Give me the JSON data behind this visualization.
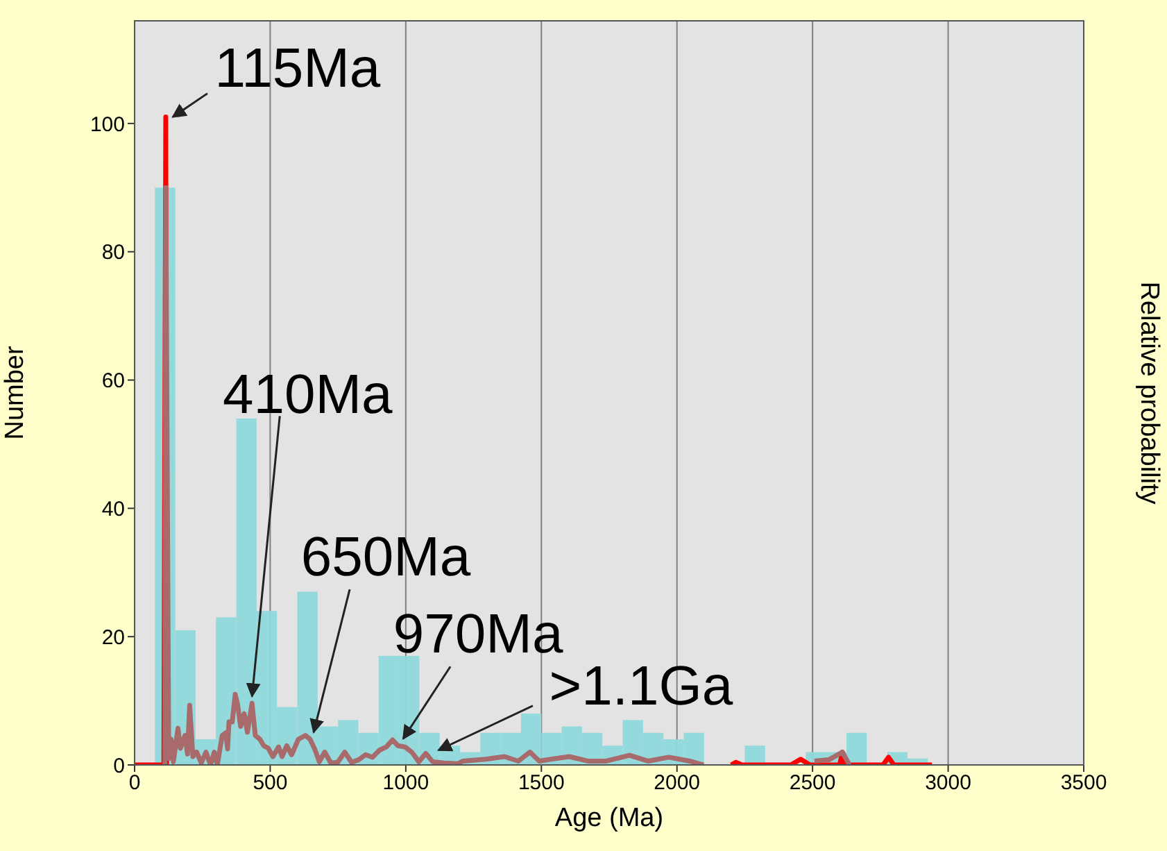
{
  "chart_data": {
    "type": "histogram",
    "xlabel": "Age (Ma)",
    "ylabel": "Number",
    "y2label": "Relative probability",
    "bins": [
      0,
      75,
      150,
      225,
      300,
      375,
      450,
      525,
      600,
      675,
      750,
      825,
      900,
      975,
      1050,
      1125,
      1200,
      1275,
      1350,
      1425,
      1500,
      1575,
      1650,
      1725,
      1800,
      1875,
      1950,
      2025,
      2100,
      2175,
      2250,
      2325,
      2400,
      2475,
      2550,
      2625,
      2700,
      2775,
      2850,
      2925
    ],
    "values": [
      0,
      90,
      21,
      4,
      23,
      54,
      24,
      9,
      27,
      6,
      7,
      5,
      17,
      17,
      5,
      3,
      2,
      5,
      5,
      8,
      5,
      6,
      5,
      3,
      7,
      5,
      4,
      5,
      0,
      0,
      3,
      0,
      0,
      2,
      2,
      5,
      0,
      2,
      1
    ],
    "color": "#8fd9dc",
    "series": [
      {
        "type": "line",
        "color": "#ff0000",
        "x": [
          0,
          108,
          115,
          118,
          2098,
          2200,
          2217,
          2240,
          2420,
          2456,
          2490,
          2600,
          2610,
          2620,
          2760,
          2780,
          2800,
          2940
        ],
        "values": [
          0,
          0,
          101,
          0,
          null,
          0,
          0.4,
          0,
          0,
          0.9,
          0,
          0,
          2,
          0,
          0,
          1.2,
          0,
          0
        ]
      },
      {
        "type": "line",
        "color": "#a86a6a",
        "x": [
          112,
          115,
          126,
          135,
          143,
          160,
          169,
          186,
          195,
          203,
          215,
          229,
          246,
          263,
          280,
          294,
          305,
          323,
          336,
          343,
          348,
          360,
          371,
          379,
          391,
          404,
          416,
          433,
          445,
          462,
          476,
          493,
          510,
          531,
          544,
          561,
          579,
          604,
          630,
          647,
          664,
          681,
          701,
          724,
          749,
          775,
          800,
          826,
          852,
          877,
          903,
          928,
          951,
          971,
          997,
          1022,
          1048,
          1074,
          1099,
          1142,
          1193,
          1210,
          1295,
          1364,
          1415,
          1458,
          1492,
          1535,
          1603,
          1671,
          1739,
          1825,
          1893,
          1970,
          2047,
          2098,
          2300,
          2507,
          2560,
          2610,
          2636
        ],
        "values": [
          0,
          90,
          1,
          4,
          0.5,
          5.7,
          2.6,
          4.6,
          1.7,
          9.3,
          1.3,
          2,
          0.3,
          2,
          0,
          2,
          0,
          4.6,
          5,
          2.5,
          6.7,
          6.7,
          11,
          9.6,
          6,
          8,
          5.1,
          9.6,
          4.6,
          4,
          3,
          2.6,
          1.3,
          2.8,
          1.3,
          3,
          1.6,
          4,
          4.6,
          4,
          2.5,
          0.5,
          2,
          0.3,
          0.4,
          2,
          0.4,
          0.8,
          1.6,
          1.2,
          2.3,
          2.8,
          3.9,
          3,
          2.8,
          2,
          0.5,
          1.8,
          0.5,
          0.3,
          0.2,
          0.6,
          0.9,
          1.3,
          0.6,
          2,
          0.6,
          0.9,
          1.3,
          0.6,
          0.6,
          1.5,
          0.6,
          1.2,
          0.6,
          0,
          null,
          0.6,
          0.8,
          2,
          0
        ]
      }
    ],
    "xlim": [
      0,
      3500
    ],
    "xticks": [
      0,
      500,
      1000,
      1500,
      2000,
      2500,
      3000,
      3500
    ],
    "ylim": [
      0,
      116
    ],
    "yticks": [
      0,
      20,
      40,
      60,
      80,
      100
    ],
    "grid": "x",
    "annotations": [
      {
        "text": "115Ma",
        "x": 115,
        "y": 101
      },
      {
        "text": "410Ma",
        "x": 433,
        "y": 9.6
      },
      {
        "text": "650Ma",
        "x": 650,
        "y": 4
      },
      {
        "text": "970Ma",
        "x": 970,
        "y": 3
      },
      {
        "text": ">1.1Ga",
        "x": 1100,
        "y": 1
      }
    ]
  }
}
